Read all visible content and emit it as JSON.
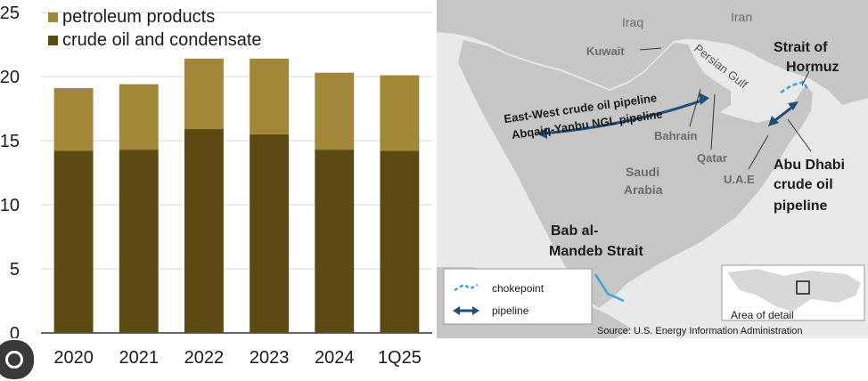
{
  "chart_data": {
    "type": "bar",
    "stacked": true,
    "categories": [
      "2020",
      "2021",
      "2022",
      "2023",
      "2024",
      "1Q25"
    ],
    "series": [
      {
        "name": "crude oil and condensate",
        "values": [
          14.2,
          14.3,
          15.9,
          15.5,
          14.3,
          14.2
        ],
        "color": "#5b4a12"
      },
      {
        "name": "petroleum products",
        "values": [
          4.9,
          5.1,
          5.5,
          5.9,
          6.0,
          5.9
        ],
        "color": "#a18737"
      }
    ],
    "legend_order": [
      "petroleum products",
      "crude oil and condensate"
    ],
    "legend_position": "top-left",
    "yticks": [
      "0",
      "5",
      "10",
      "15",
      "20",
      "25"
    ],
    "ylim": [
      0,
      25
    ],
    "grid": true,
    "title": "",
    "xlabel": "",
    "ylabel": ""
  },
  "map": {
    "labels": {
      "iraq": "Iraq",
      "iran": "Iran",
      "kuwait": "Kuwait",
      "persian_gulf": "Persian Gulf",
      "bahrain": "Bahrain",
      "qatar": "Qatar",
      "saudi": "Saudi",
      "arabia": "Arabia",
      "uae": "U.A.E",
      "hormuz_line1": "Strait of",
      "hormuz_line2": "Hormuz",
      "abu_line1": "Abu Dhabi",
      "abu_line2": "crude oil",
      "abu_line3": "pipeline",
      "bab_line1": "Bab al-",
      "bab_line2": "Mandeb Strait",
      "pipeline_line1": "East-West crude oil pipeline",
      "pipeline_line2": "Abqaiq-Yanbu NGL pipeline",
      "area_of_detail": "Area of detail",
      "source": "Source: U.S. Energy Information Administration"
    },
    "legend": {
      "chokepoint": "chokepoint",
      "pipeline": "pipeline"
    },
    "colors": {
      "land": "#c6c6c6",
      "water": "#e9e9ea",
      "route": "#1f4e79",
      "chokepoint": "#3aa3d8"
    }
  }
}
